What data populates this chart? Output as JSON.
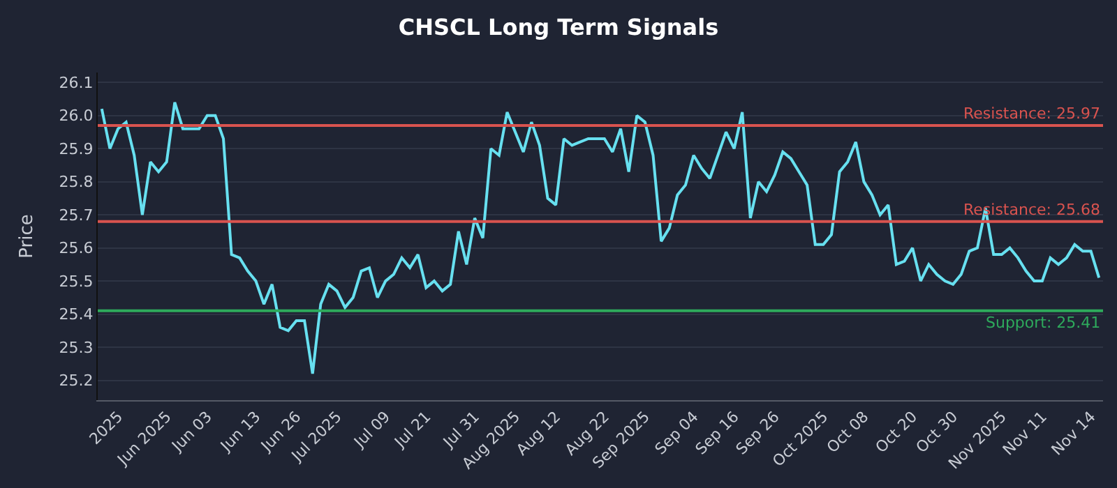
{
  "chart_data": {
    "type": "line",
    "title": "CHSCL Long Term Signals",
    "ylabel": "Price",
    "categories": [
      null,
      null,
      "2025",
      null,
      null,
      null,
      null,
      null,
      "Jun 2025",
      null,
      null,
      null,
      null,
      "Jun 03",
      null,
      null,
      null,
      null,
      null,
      "Jun 13",
      null,
      null,
      null,
      null,
      "Jun 26",
      null,
      null,
      null,
      null,
      "Jul 2025",
      null,
      null,
      null,
      null,
      null,
      "Jul 09",
      null,
      null,
      null,
      null,
      "Jul 21",
      null,
      null,
      null,
      null,
      null,
      "Jul 31",
      null,
      null,
      null,
      null,
      "Aug 2025",
      null,
      null,
      null,
      null,
      "Aug 12",
      null,
      null,
      null,
      null,
      null,
      "Aug 22",
      null,
      null,
      null,
      null,
      "Sep 2025",
      null,
      null,
      null,
      null,
      null,
      "Sep 04",
      null,
      null,
      null,
      null,
      "Sep 16",
      null,
      null,
      null,
      null,
      "Sep 26",
      null,
      null,
      null,
      null,
      null,
      "Oct 2025",
      null,
      null,
      null,
      null,
      "Oct 08",
      null,
      null,
      null,
      null,
      null,
      "Oct 20",
      null,
      null,
      null,
      null,
      "Oct 30",
      null,
      null,
      null,
      null,
      null,
      "Nov 2025",
      null,
      null,
      null,
      null,
      "Nov 11",
      null,
      null,
      null,
      null,
      null,
      "Nov 14",
      null
    ],
    "series": [
      {
        "color": "#67e0f0",
        "values": [
          26.02,
          25.9,
          25.96,
          25.98,
          25.88,
          25.7,
          25.86,
          25.83,
          25.86,
          26.04,
          25.96,
          25.96,
          25.96,
          26.0,
          26.0,
          25.93,
          25.58,
          25.57,
          25.53,
          25.5,
          25.43,
          25.49,
          25.36,
          25.35,
          25.38,
          25.38,
          25.22,
          25.43,
          25.49,
          25.47,
          25.42,
          25.45,
          25.53,
          25.54,
          25.45,
          25.5,
          25.52,
          25.57,
          25.54,
          25.58,
          25.48,
          25.5,
          25.47,
          25.49,
          25.65,
          25.55,
          25.69,
          25.63,
          25.9,
          25.88,
          26.01,
          25.95,
          25.89,
          25.98,
          25.91,
          25.75,
          25.73,
          25.93,
          25.91,
          25.92,
          25.93,
          25.93,
          25.93,
          25.89,
          25.96,
          25.83,
          26.0,
          25.98,
          25.88,
          25.62,
          25.66,
          25.76,
          25.79,
          25.88,
          25.84,
          25.81,
          25.88,
          25.95,
          25.9,
          26.01,
          25.69,
          25.8,
          25.77,
          25.82,
          25.89,
          25.87,
          25.83,
          25.79,
          25.61,
          25.61,
          25.64,
          25.83,
          25.86,
          25.92,
          25.8,
          25.76,
          25.7,
          25.73,
          25.55,
          25.56,
          25.6,
          25.5,
          25.55,
          25.52,
          25.5,
          25.49,
          25.52,
          25.59,
          25.6,
          25.72,
          25.58,
          25.58,
          25.6,
          25.57,
          25.53,
          25.5,
          25.5,
          25.57,
          25.55,
          25.57,
          25.61,
          25.59,
          25.59,
          25.51
        ]
      }
    ],
    "ylim": [
      25.14,
      26.13
    ],
    "yticks": [
      25.2,
      25.3,
      25.4,
      25.5,
      25.6,
      25.7,
      25.8,
      25.9,
      {
        "value": 26,
        "label": "26.0"
      },
      26.1
    ],
    "ref_lines": [
      {
        "axis": "y",
        "value": 25.97,
        "label": "Resistance: 25.97",
        "color": "#d9534f"
      },
      {
        "axis": "y",
        "value": 25.68,
        "label": "Resistance: 25.68",
        "color": "#d9534f"
      },
      {
        "axis": "y",
        "value": 25.41,
        "label": "Support: 25.41",
        "color": "#2eaa5c"
      }
    ],
    "grid": "y",
    "marker": "none",
    "line_style": "solid"
  }
}
